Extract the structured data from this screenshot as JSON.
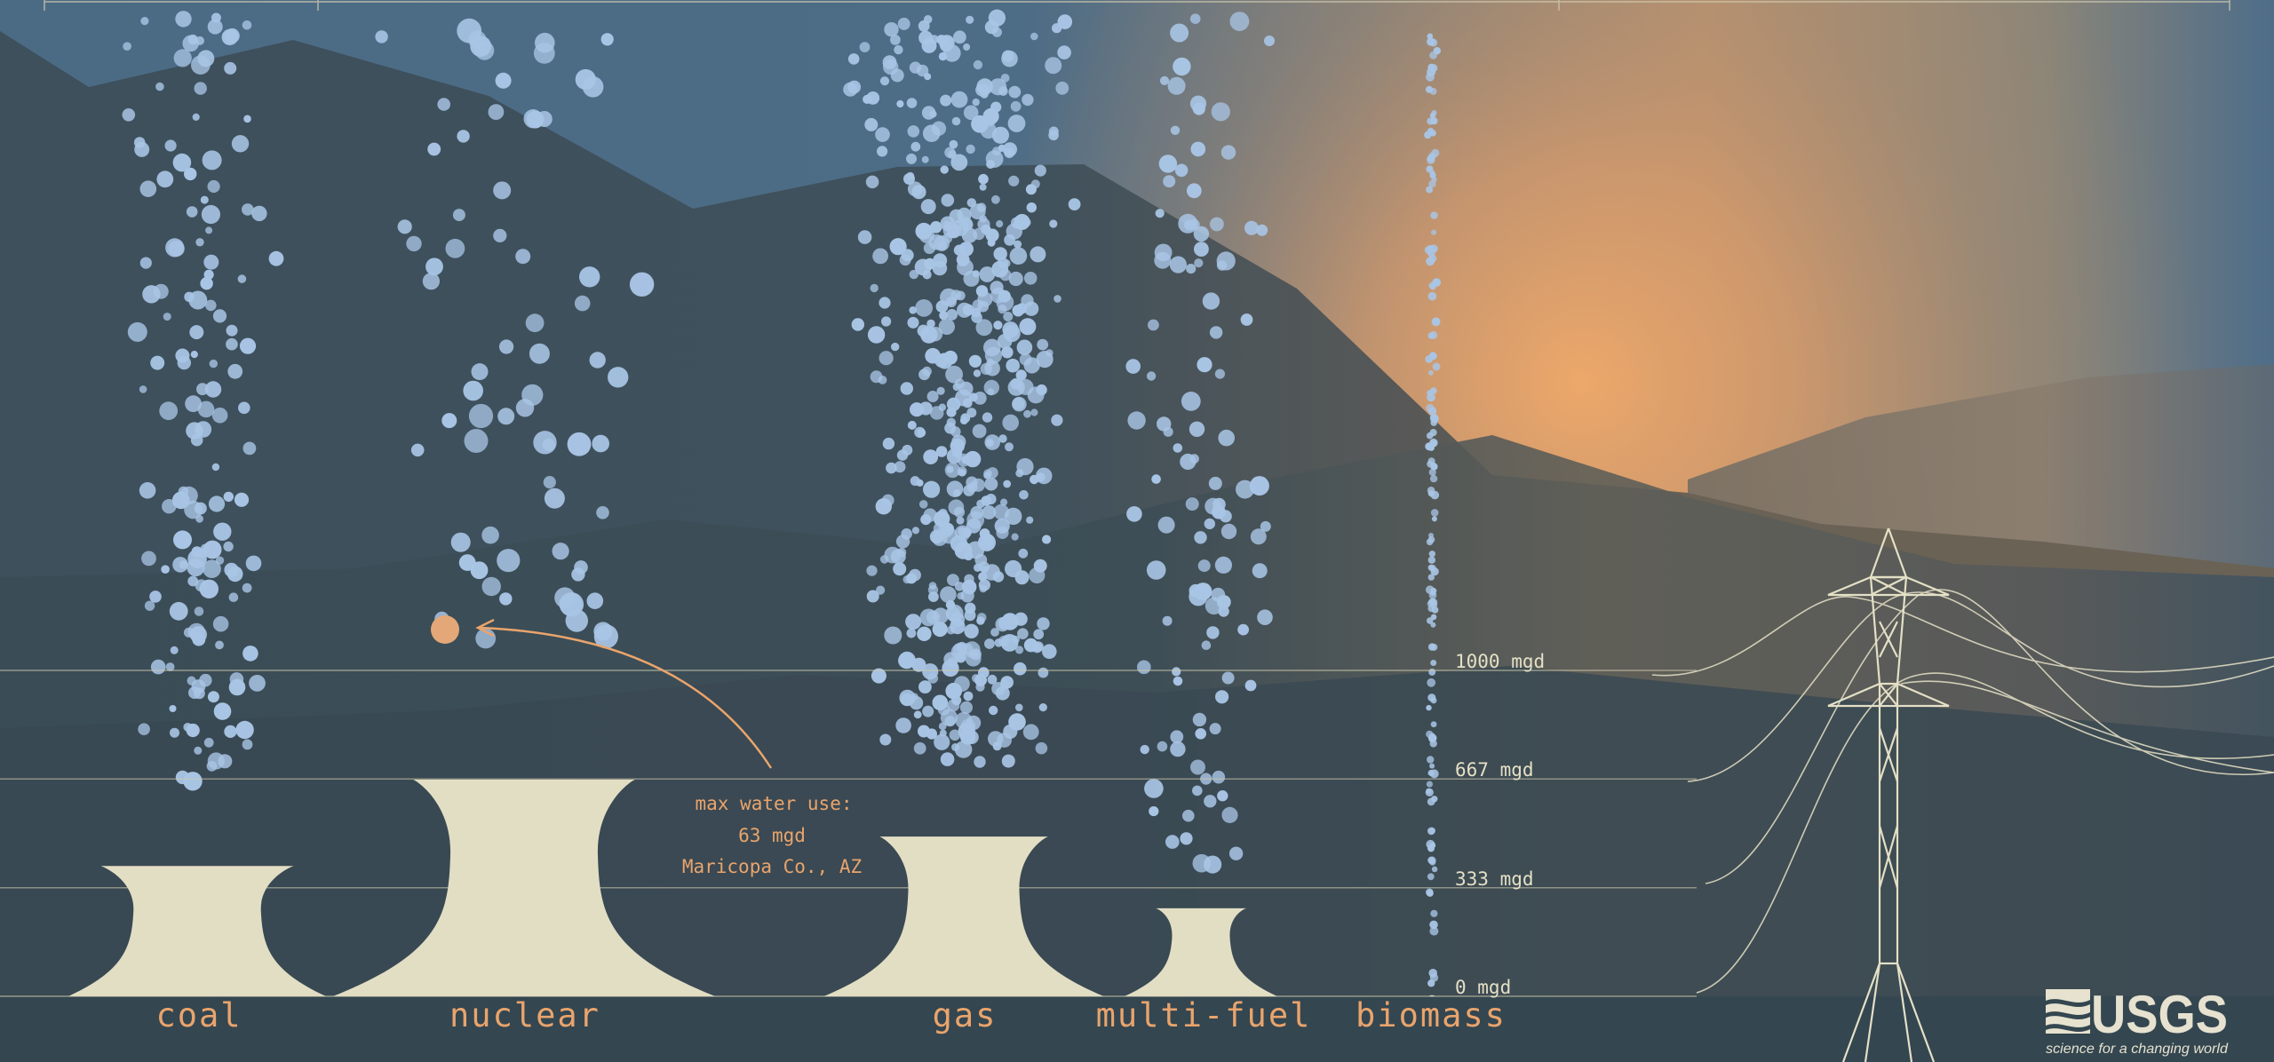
{
  "chart_data": {
    "type": "bar",
    "unit": "mgd",
    "categories": [
      "coal",
      "nuclear",
      "gas",
      "multi-fuel",
      "biomass"
    ],
    "values": [
      400,
      665,
      490,
      270,
      3
    ],
    "ylim": [
      0,
      1000
    ],
    "levels": [
      {
        "value": 0,
        "label": "0 mgd"
      },
      {
        "value": 333,
        "label": "333 mgd"
      },
      {
        "value": 667,
        "label": "667 mgd"
      },
      {
        "value": 1000,
        "label": "1000 mgd"
      }
    ],
    "annotation": {
      "lines": [
        "max water use:",
        "63 mgd",
        "Maricopa Co., AZ"
      ],
      "value": 63
    },
    "grid": true,
    "legend": "none"
  },
  "logo": {
    "name": "USGS",
    "tagline": "science for a changing world"
  },
  "colors": {
    "tower": "#e2dec4",
    "label": "#e9a46c",
    "bubble": "#a9c5e5",
    "sun": "#eba56a",
    "gridline": "#cfc9ad"
  }
}
